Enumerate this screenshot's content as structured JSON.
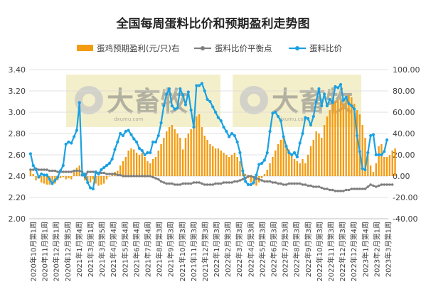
{
  "chart_data": {
    "type": "bar+line",
    "title": "全国每周蛋料比价和预期盈利走势图",
    "left_axis": {
      "ylim": [
        2.0,
        3.4
      ],
      "ticks": [
        "2.00",
        "2.20",
        "2.40",
        "2.60",
        "2.80",
        "3.00",
        "3.20",
        "3.40"
      ]
    },
    "right_axis": {
      "ylim": [
        -40,
        100
      ],
      "ticks": [
        "-40.00",
        "-20.00",
        "0.00",
        "20.00",
        "40.00",
        "60.00",
        "80.00",
        "100.00"
      ]
    },
    "x_tick_labels": [
      "2020年10月第1周",
      "2020年11月第1周",
      "2020年12月第1周",
      "2020年12月第5周",
      "2021年1月第4周",
      "2021年3月第1周",
      "2021年3月第5周",
      "2021年4月第4周",
      "2021年5月第4周",
      "2021年6月第4周",
      "2021年7月第4周",
      "2021年8月第3周",
      "2021年9月第3周",
      "2021年10月第3周",
      "2021年11月第3周",
      "2021年12月第3周",
      "2022年1月第3周",
      "2022年2月第3周",
      "2022年3月第3周",
      "2022年4月第3周",
      "2022年5月第3周",
      "2022年6月第3周",
      "2022年7月第3周",
      "2022年8月第3周",
      "2022年9月第3周",
      "2022年10月第3周",
      "2022年11月第3周",
      "2022年12月第3周",
      "2022年12月第4周",
      "2023年1月第4周",
      "2023年2月第1周",
      "2023年3月第1周"
    ],
    "series": [
      {
        "name": "蛋鸡预期盈利(元/只)右",
        "type": "bar",
        "axis": "right",
        "color": "#f39c12",
        "values": [
          6,
          2,
          -4,
          -2,
          -6,
          -7,
          -8,
          -8,
          -6,
          -7,
          -4,
          -2,
          -1,
          -3,
          -2,
          -3,
          5,
          8,
          10,
          2,
          -4,
          -5,
          -6,
          -3,
          -7,
          -9,
          -8,
          -7,
          -3,
          0,
          2,
          4,
          5,
          10,
          14,
          18,
          24,
          26,
          25,
          22,
          20,
          22,
          18,
          14,
          12,
          16,
          18,
          24,
          30,
          36,
          42,
          46,
          48,
          44,
          40,
          36,
          25,
          36,
          40,
          44,
          50,
          56,
          58,
          46,
          38,
          34,
          30,
          28,
          26,
          26,
          24,
          22,
          20,
          18,
          20,
          22,
          18,
          14,
          8,
          2,
          -2,
          -6,
          -8,
          -9,
          -6,
          -2,
          2,
          6,
          12,
          18,
          24,
          30,
          34,
          36,
          28,
          25,
          20,
          16,
          14,
          12,
          16,
          12,
          20,
          28,
          34,
          42,
          40,
          36,
          48,
          56,
          62,
          68,
          70,
          72,
          70,
          68,
          72,
          76,
          74,
          68,
          62,
          58,
          48,
          36,
          22,
          10,
          4,
          12,
          28,
          30,
          18,
          18,
          20,
          24,
          26
        ]
      },
      {
        "name": "蛋料比价平衡点",
        "type": "line",
        "axis": "left",
        "color": "#7f7f7f",
        "values": [
          2.46,
          2.46,
          2.47,
          2.46,
          2.46,
          2.46,
          2.46,
          2.45,
          2.45,
          2.45,
          2.44,
          2.44,
          2.44,
          2.44,
          2.44,
          2.44,
          2.45,
          2.45,
          2.45,
          2.44,
          2.39,
          2.44,
          2.44,
          2.44,
          2.43,
          2.43,
          2.43,
          2.43,
          2.42,
          2.42,
          2.42,
          2.42,
          2.41,
          2.41,
          2.4,
          2.4,
          2.4,
          2.4,
          2.4,
          2.4,
          2.4,
          2.4,
          2.4,
          2.4,
          2.4,
          2.39,
          2.38,
          2.37,
          2.35,
          2.34,
          2.33,
          2.33,
          2.33,
          2.32,
          2.32,
          2.32,
          2.33,
          2.33,
          2.33,
          2.33,
          2.34,
          2.34,
          2.34,
          2.33,
          2.32,
          2.32,
          2.32,
          2.32,
          2.33,
          2.33,
          2.33,
          2.34,
          2.34,
          2.34,
          2.34,
          2.35,
          2.35,
          2.36,
          2.37,
          2.38,
          2.4,
          2.4,
          2.39,
          2.38,
          2.37,
          2.36,
          2.35,
          2.35,
          2.35,
          2.34,
          2.34,
          2.33,
          2.33,
          2.32,
          2.32,
          2.33,
          2.33,
          2.33,
          2.33,
          2.33,
          2.32,
          2.32,
          2.31,
          2.31,
          2.3,
          2.3,
          2.3,
          2.29,
          2.28,
          2.28,
          2.27,
          2.27,
          2.26,
          2.26,
          2.26,
          2.26,
          2.27,
          2.27,
          2.28,
          2.28,
          2.28,
          2.28,
          2.28,
          2.28,
          2.3,
          2.32,
          2.31,
          2.3,
          2.31,
          2.32,
          2.32,
          2.32,
          2.32,
          2.32
        ]
      },
      {
        "name": "蛋料比价",
        "type": "line",
        "axis": "left",
        "color": "#1ba1e2",
        "values": [
          2.61,
          2.5,
          2.46,
          2.39,
          2.42,
          2.41,
          2.41,
          2.37,
          2.33,
          2.36,
          2.39,
          2.45,
          2.5,
          2.7,
          2.72,
          2.71,
          2.77,
          2.83,
          3.09,
          2.41,
          2.42,
          2.34,
          2.29,
          2.28,
          2.44,
          2.42,
          2.46,
          2.48,
          2.5,
          2.52,
          2.56,
          2.65,
          2.72,
          2.8,
          2.78,
          2.82,
          2.83,
          2.79,
          2.75,
          2.72,
          2.66,
          2.64,
          2.6,
          2.62,
          2.62,
          2.72,
          2.72,
          2.78,
          2.9,
          3.06,
          3.17,
          3.22,
          3.06,
          3.03,
          3.04,
          3.22,
          3.16,
          3.07,
          3.19,
          3.02,
          2.86,
          3.25,
          3.25,
          3.27,
          3.2,
          3.12,
          3.1,
          3.05,
          3.0,
          2.95,
          2.92,
          2.86,
          2.82,
          2.77,
          2.8,
          2.78,
          2.72,
          2.62,
          2.45,
          2.35,
          2.32,
          2.32,
          2.34,
          2.41,
          2.51,
          2.52,
          2.55,
          2.62,
          2.82,
          2.99,
          3.0,
          2.96,
          2.92,
          2.77,
          2.68,
          2.62,
          2.6,
          2.62,
          2.58,
          2.71,
          2.8,
          2.95,
          2.94,
          2.88,
          2.96,
          3.1,
          3.22,
          3.06,
          3.17,
          3.06,
          3.12,
          3.09,
          3.24,
          3.23,
          3.26,
          3.11,
          3.14,
          3.08,
          3.06,
          3.03,
          2.78,
          2.63,
          2.47,
          2.46,
          2.62,
          2.78,
          2.79,
          2.6,
          2.6,
          2.6,
          2.63,
          2.74
        ]
      }
    ],
    "watermark": {
      "brand": "大畜牧",
      "url": "dxumu.com"
    },
    "colors": {
      "bar": "#f39c12",
      "ratio_line": "#1ba1e2",
      "breakeven_line": "#7f7f7f",
      "watermark_bg": "#f4efcb",
      "grid": "#d9d9d9"
    }
  }
}
